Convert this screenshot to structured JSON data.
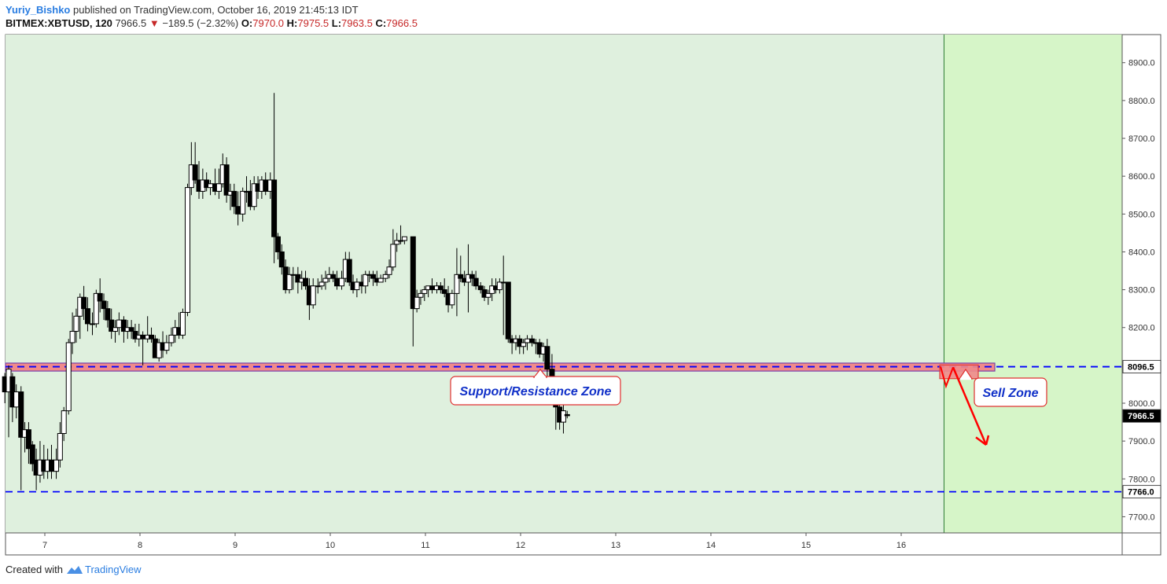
{
  "header": {
    "author": "Yuriy_Bishko",
    "published": "published on TradingView.com, October 16, 2019 21:45:13 IDT",
    "symbol": "BITMEX:XBTUSD, 120",
    "last": "7966.5",
    "change": "−189.5 (−2.32%)",
    "o_label": "O:",
    "o_value": "7970.0",
    "h_label": "H:",
    "h_value": "7975.5",
    "l_label": "L:",
    "l_value": "7963.5",
    "c_label": "C:",
    "c_value": "7966.5"
  },
  "footer": {
    "created_with": "Created with",
    "brand": "TradingView"
  },
  "colors": {
    "background_zone": "#dff0de",
    "sell_background": "#d6f5c8",
    "support_zone_fill": "#f08a8a",
    "support_zone_border": "#7a3fa8",
    "level_line": "#0000ff",
    "annotation_text": "#1030c8",
    "annotation_border": "#e03030",
    "arrow": "#ff0000",
    "candle_up_fill": "#ffffff",
    "candle_down_fill": "#000000"
  },
  "chart_data": {
    "type": "candlestick",
    "title": "",
    "ylim": [
      7660,
      8960
    ],
    "y_ticks": [
      "7700.0",
      "7800.0",
      "7900.0",
      "8000.0",
      "8100.0",
      "8200.0",
      "8300.0",
      "8400.0",
      "8500.0",
      "8600.0",
      "8700.0",
      "8800.0",
      "8900.0"
    ],
    "x_ticks": [
      "7",
      "8",
      "9",
      "10",
      "11",
      "12",
      "13",
      "14",
      "15",
      "16"
    ],
    "price_labels": [
      {
        "name": "resistance",
        "value": 8096.5,
        "text": "8096.5"
      },
      {
        "name": "current",
        "value": 7966.5,
        "text": "7966.5"
      },
      {
        "name": "support",
        "value": 7766.0,
        "text": "7766.0"
      }
    ],
    "zone": {
      "low": 8085,
      "high": 8106
    },
    "annotations": [
      "Support/Resistance Zone",
      "Sell Zone"
    ],
    "sell_zone_start_day": 16.45,
    "candles": [
      [
        6.58,
        8070,
        8080,
        8000,
        8030
      ],
      [
        6.62,
        8030,
        8100,
        7910,
        8090
      ],
      [
        6.66,
        8070,
        8080,
        7950,
        7990
      ],
      [
        6.7,
        7990,
        8050,
        7960,
        8030
      ],
      [
        6.75,
        8030,
        8045,
        7770,
        7910
      ],
      [
        6.79,
        7910,
        7950,
        7870,
        7930
      ],
      [
        6.83,
        7930,
        7950,
        7840,
        7880
      ],
      [
        6.87,
        7890,
        7900,
        7820,
        7840
      ],
      [
        6.91,
        7850,
        7880,
        7770,
        7810
      ],
      [
        6.95,
        7810,
        7900,
        7790,
        7850
      ],
      [
        6.99,
        7850,
        7890,
        7800,
        7820
      ],
      [
        7.03,
        7820,
        7880,
        7800,
        7850
      ],
      [
        7.07,
        7850,
        7890,
        7800,
        7820
      ],
      [
        7.12,
        7820,
        7880,
        7800,
        7850
      ],
      [
        7.16,
        7850,
        7950,
        7830,
        7920
      ],
      [
        7.2,
        7920,
        7990,
        7900,
        7980
      ],
      [
        7.25,
        7980,
        8170,
        7970,
        8160
      ],
      [
        7.29,
        8160,
        8240,
        8130,
        8190
      ],
      [
        7.33,
        8190,
        8250,
        8160,
        8230
      ],
      [
        7.37,
        8230,
        8290,
        8170,
        8280
      ],
      [
        7.41,
        8280,
        8310,
        8220,
        8250
      ],
      [
        7.45,
        8250,
        8280,
        8190,
        8210
      ],
      [
        7.5,
        8210,
        8240,
        8180,
        8210
      ],
      [
        7.54,
        8210,
        8300,
        8200,
        8290
      ],
      [
        7.58,
        8290,
        8330,
        8240,
        8270
      ],
      [
        7.62,
        8270,
        8290,
        8220,
        8250
      ],
      [
        7.66,
        8250,
        8270,
        8200,
        8220
      ],
      [
        7.7,
        8220,
        8250,
        8170,
        8190
      ],
      [
        7.74,
        8190,
        8220,
        8160,
        8200
      ],
      [
        7.78,
        8200,
        8240,
        8180,
        8220
      ],
      [
        7.83,
        8220,
        8230,
        8160,
        8190
      ],
      [
        7.87,
        8190,
        8220,
        8170,
        8200
      ],
      [
        7.91,
        8200,
        8220,
        8170,
        8190
      ],
      [
        7.95,
        8190,
        8210,
        8160,
        8170
      ],
      [
        7.99,
        8170,
        8210,
        8150,
        8180
      ],
      [
        8.03,
        8180,
        8190,
        8100,
        8170
      ],
      [
        8.08,
        8170,
        8230,
        8160,
        8180
      ],
      [
        8.12,
        8180,
        8200,
        8160,
        8170
      ],
      [
        8.16,
        8170,
        8180,
        8120,
        8120
      ],
      [
        8.2,
        8120,
        8170,
        8110,
        8160
      ],
      [
        8.24,
        8160,
        8190,
        8120,
        8140
      ],
      [
        8.28,
        8140,
        8180,
        8130,
        8160
      ],
      [
        8.33,
        8160,
        8200,
        8150,
        8180
      ],
      [
        8.37,
        8180,
        8220,
        8160,
        8200
      ],
      [
        8.41,
        8200,
        8240,
        8170,
        8180
      ],
      [
        8.45,
        8180,
        8250,
        8170,
        8240
      ],
      [
        8.5,
        8240,
        8580,
        8230,
        8570
      ],
      [
        8.54,
        8570,
        8690,
        8550,
        8630
      ],
      [
        8.58,
        8630,
        8690,
        8580,
        8590
      ],
      [
        8.62,
        8590,
        8640,
        8540,
        8560
      ],
      [
        8.66,
        8560,
        8620,
        8540,
        8590
      ],
      [
        8.7,
        8590,
        8610,
        8560,
        8570
      ],
      [
        8.74,
        8570,
        8590,
        8550,
        8580
      ],
      [
        8.79,
        8580,
        8620,
        8550,
        8560
      ],
      [
        8.83,
        8560,
        8620,
        8540,
        8580
      ],
      [
        8.87,
        8580,
        8660,
        8570,
        8630
      ],
      [
        8.91,
        8630,
        8650,
        8530,
        8550
      ],
      [
        8.95,
        8550,
        8580,
        8510,
        8560
      ],
      [
        8.99,
        8560,
        8580,
        8500,
        8520
      ],
      [
        9.03,
        8520,
        8560,
        8470,
        8500
      ],
      [
        9.08,
        8500,
        8570,
        8480,
        8560
      ],
      [
        9.12,
        8560,
        8600,
        8530,
        8560
      ],
      [
        9.16,
        8560,
        8590,
        8510,
        8520
      ],
      [
        9.2,
        8520,
        8600,
        8510,
        8580
      ],
      [
        9.24,
        8580,
        8600,
        8540,
        8560
      ],
      [
        9.28,
        8560,
        8600,
        8540,
        8590
      ],
      [
        9.32,
        8590,
        8610,
        8550,
        8560
      ],
      [
        9.37,
        8560,
        8610,
        8540,
        8590
      ],
      [
        9.41,
        8590,
        8820,
        8370,
        8440
      ],
      [
        9.45,
        8440,
        8450,
        8380,
        8400
      ],
      [
        9.49,
        8400,
        8420,
        8340,
        8360
      ],
      [
        9.53,
        8360,
        8380,
        8290,
        8300
      ],
      [
        9.57,
        8300,
        8360,
        8290,
        8340
      ],
      [
        9.61,
        8340,
        8360,
        8300,
        8340
      ],
      [
        9.66,
        8340,
        8360,
        8290,
        8320
      ],
      [
        9.7,
        8320,
        8350,
        8300,
        8330
      ],
      [
        9.74,
        8330,
        8350,
        8300,
        8310
      ],
      [
        9.78,
        8310,
        8330,
        8220,
        8260
      ],
      [
        9.82,
        8260,
        8330,
        8250,
        8310
      ],
      [
        9.87,
        8310,
        8330,
        8290,
        8310
      ],
      [
        9.91,
        8310,
        8340,
        8300,
        8320
      ],
      [
        9.95,
        8320,
        8350,
        8300,
        8330
      ],
      [
        9.99,
        8330,
        8360,
        8320,
        8340
      ],
      [
        10.03,
        8340,
        8350,
        8320,
        8330
      ],
      [
        10.07,
        8330,
        8350,
        8300,
        8310
      ],
      [
        10.12,
        8310,
        8350,
        8300,
        8330
      ],
      [
        10.16,
        8330,
        8400,
        8320,
        8380
      ],
      [
        10.2,
        8380,
        8400,
        8310,
        8320
      ],
      [
        10.24,
        8320,
        8340,
        8290,
        8300
      ],
      [
        10.28,
        8300,
        8330,
        8280,
        8320
      ],
      [
        10.33,
        8320,
        8340,
        8290,
        8310
      ],
      [
        10.37,
        8310,
        8350,
        8290,
        8340
      ],
      [
        10.41,
        8340,
        8350,
        8320,
        8340
      ],
      [
        10.45,
        8340,
        8350,
        8310,
        8330
      ],
      [
        10.49,
        8330,
        8350,
        8310,
        8320
      ],
      [
        10.53,
        8320,
        8340,
        8320,
        8330
      ],
      [
        10.58,
        8330,
        8350,
        8320,
        8340
      ],
      [
        10.62,
        8340,
        8380,
        8330,
        8360
      ],
      [
        10.66,
        8360,
        8460,
        8350,
        8420
      ],
      [
        10.7,
        8420,
        8450,
        8400,
        8430
      ],
      [
        10.74,
        8430,
        8470,
        8420,
        8430
      ],
      [
        10.78,
        8430,
        8440,
        8420,
        8440
      ],
      [
        10.87,
        8440,
        8440,
        8150,
        8250
      ],
      [
        10.91,
        8250,
        8300,
        8240,
        8280
      ],
      [
        10.95,
        8280,
        8300,
        8260,
        8290
      ],
      [
        10.99,
        8290,
        8310,
        8270,
        8300
      ],
      [
        11.03,
        8300,
        8310,
        8280,
        8310
      ],
      [
        11.07,
        8310,
        8330,
        8290,
        8300
      ],
      [
        11.12,
        8300,
        8320,
        8290,
        8310
      ],
      [
        11.16,
        8310,
        8320,
        8290,
        8300
      ],
      [
        11.2,
        8300,
        8330,
        8280,
        8290
      ],
      [
        11.24,
        8290,
        8310,
        8240,
        8260
      ],
      [
        11.28,
        8260,
        8300,
        8250,
        8290
      ],
      [
        11.33,
        8290,
        8410,
        8230,
        8340
      ],
      [
        11.37,
        8340,
        8390,
        8320,
        8330
      ],
      [
        11.41,
        8330,
        8350,
        8310,
        8320
      ],
      [
        11.45,
        8320,
        8420,
        8240,
        8340
      ],
      [
        11.49,
        8340,
        8350,
        8310,
        8330
      ],
      [
        11.53,
        8330,
        8350,
        8300,
        8310
      ],
      [
        11.58,
        8310,
        8320,
        8290,
        8300
      ],
      [
        11.62,
        8300,
        8310,
        8270,
        8280
      ],
      [
        11.66,
        8280,
        8300,
        8260,
        8290
      ],
      [
        11.7,
        8290,
        8330,
        8270,
        8310
      ],
      [
        11.74,
        8310,
        8330,
        8290,
        8300
      ],
      [
        11.78,
        8300,
        8330,
        8290,
        8320
      ],
      [
        11.82,
        8320,
        8390,
        8180,
        8320
      ],
      [
        11.87,
        8320,
        8320,
        8160,
        8170
      ],
      [
        11.91,
        8170,
        8180,
        8130,
        8160
      ],
      [
        11.95,
        8160,
        8180,
        8140,
        8170
      ],
      [
        11.99,
        8170,
        8180,
        8130,
        8150
      ],
      [
        12.03,
        8150,
        8170,
        8130,
        8160
      ],
      [
        12.07,
        8160,
        8180,
        8140,
        8170
      ],
      [
        12.12,
        8170,
        8180,
        8150,
        8160
      ],
      [
        12.16,
        8160,
        8170,
        8130,
        8160
      ],
      [
        12.2,
        8160,
        8170,
        8120,
        8130
      ],
      [
        12.24,
        8130,
        8160,
        8110,
        8150
      ],
      [
        12.28,
        8150,
        8170,
        8030,
        8090
      ],
      [
        12.33,
        8090,
        8130,
        8020,
        8040
      ],
      [
        12.37,
        8040,
        8050,
        7930,
        7990
      ],
      [
        12.41,
        7990,
        8000,
        7930,
        7950
      ],
      [
        12.45,
        7950,
        8020,
        7920,
        7980
      ],
      [
        12.49,
        7970,
        7980,
        7960,
        7967
      ]
    ]
  }
}
